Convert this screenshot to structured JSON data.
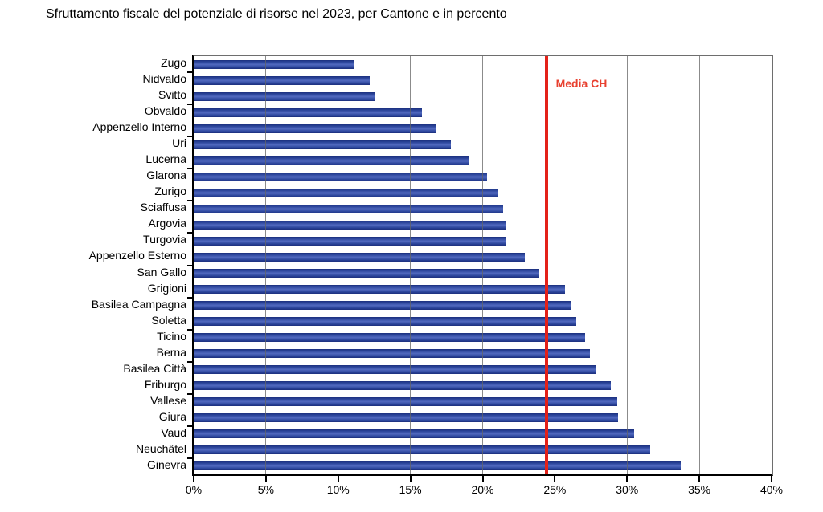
{
  "title": "Sfruttamento fiscale del potenziale di risorse nel 2023, per Cantone e in percento",
  "colors": {
    "bar_dark": "#1c2f7d",
    "bar_mid": "#2b449a",
    "bar_light": "#5169bf",
    "grid": "#646464",
    "media_line": "#e32119",
    "media_label": "#e8402f",
    "axis": "#000000",
    "border_gray": "#6e6e6e"
  },
  "chart_data": {
    "type": "bar",
    "orientation": "horizontal",
    "title": "Sfruttamento fiscale del potenziale di risorse nel 2023, per Cantone e in percento",
    "categories": [
      "Zugo",
      "Nidvaldo",
      "Svitto",
      "Obvaldo",
      "Appenzello Interno",
      "Uri",
      "Lucerna",
      "Glarona",
      "Zurigo",
      "Sciaffusa",
      "Argovia",
      "Turgovia",
      "Appenzello Esterno",
      "San Gallo",
      "Grigioni",
      "Basilea Campagna",
      "Soletta",
      "Ticino",
      "Berna",
      "Basilea Città",
      "Friburgo",
      "Vallese",
      "Giura",
      "Vaud",
      "Neuchâtel",
      "Ginevra"
    ],
    "values": [
      11.1,
      12.2,
      12.5,
      15.8,
      16.8,
      17.8,
      19.1,
      20.3,
      21.1,
      21.4,
      21.6,
      21.6,
      22.9,
      23.9,
      25.7,
      26.1,
      26.5,
      27.1,
      27.4,
      27.8,
      28.9,
      29.3,
      29.4,
      30.5,
      31.6,
      33.7
    ],
    "xlabel": "",
    "ylabel": "",
    "xlim": [
      0,
      40
    ],
    "x_ticks": [
      "0%",
      "5%",
      "10%",
      "15%",
      "20%",
      "25%",
      "30%",
      "35%",
      "40%"
    ],
    "x_tick_values": [
      0,
      5,
      10,
      15,
      20,
      25,
      30,
      35,
      40
    ],
    "gridline_values": [
      5,
      10,
      15,
      20,
      25,
      30,
      35
    ],
    "grid": true,
    "legend": null,
    "reference_line": {
      "label": "Media CH",
      "value": 24.4
    }
  }
}
